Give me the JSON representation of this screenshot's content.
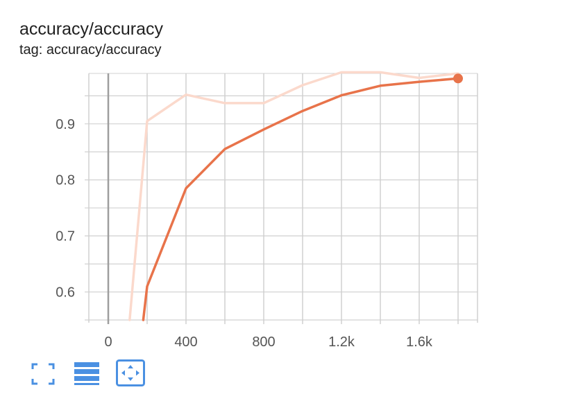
{
  "header": {
    "title": "accuracy/accuracy",
    "tag": "tag: accuracy/accuracy"
  },
  "colors": {
    "smoothed": "#e8734a",
    "raw": "#fbd9cc",
    "grid": "#d0d0d0",
    "zero_axis": "#9e9e9e",
    "toolbar_icon": "#4a90e2"
  },
  "toolbar": {
    "items": [
      {
        "icon": "fullscreen-icon"
      },
      {
        "icon": "toggle-y-log-icon"
      },
      {
        "icon": "fit-domain-icon"
      }
    ]
  },
  "chart_data": {
    "type": "line",
    "title": "",
    "xlabel": "",
    "ylabel": "",
    "xlim": [
      -100,
      1900
    ],
    "ylim": [
      0.55,
      0.99
    ],
    "x_ticks": [
      0,
      400,
      800,
      1200,
      1600
    ],
    "x_tick_labels": [
      "0",
      "400",
      "800",
      "1.2k",
      "1.6k"
    ],
    "y_ticks": [
      0.6,
      0.7,
      0.8,
      0.9
    ],
    "y_tick_labels": [
      "0.6",
      "0.7",
      "0.8",
      "0.9"
    ],
    "grid": true,
    "series": [
      {
        "style": "raw",
        "points": [
          [
            110,
            0.55
          ],
          [
            200,
            0.905
          ],
          [
            400,
            0.952
          ],
          [
            600,
            0.937
          ],
          [
            800,
            0.937
          ],
          [
            1000,
            0.969
          ],
          [
            1200,
            0.992
          ],
          [
            1400,
            0.992
          ],
          [
            1600,
            0.982
          ],
          [
            1800,
            0.99
          ]
        ]
      },
      {
        "style": "smoothed",
        "points": [
          [
            180,
            0.55
          ],
          [
            200,
            0.61
          ],
          [
            400,
            0.785
          ],
          [
            600,
            0.855
          ],
          [
            800,
            0.89
          ],
          [
            1000,
            0.923
          ],
          [
            1200,
            0.951
          ],
          [
            1400,
            0.968
          ],
          [
            1600,
            0.975
          ],
          [
            1800,
            0.981
          ]
        ]
      }
    ]
  }
}
